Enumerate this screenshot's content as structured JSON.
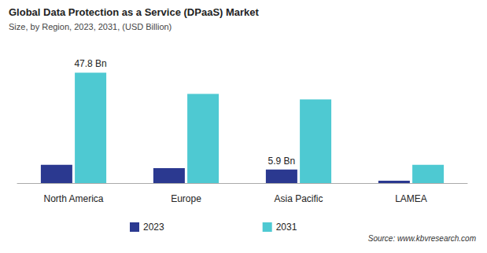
{
  "chart_data": {
    "type": "bar",
    "title": "Global Data Protection as a Service (DPaaS) Market",
    "subtitle": "Size, by Region, 2023, 2031, (USD Billion)",
    "categories": [
      "North America",
      "Europe",
      "Asia Pacific",
      "LAMEA"
    ],
    "series": [
      {
        "name": "2023",
        "color": "#2b3990",
        "values": [
          7.9,
          6.5,
          5.9,
          1.0
        ],
        "value_labels": [
          null,
          null,
          "5.9 Bn",
          null
        ]
      },
      {
        "name": "2031",
        "color": "#4ec9d2",
        "values": [
          47.8,
          38.6,
          36.2,
          7.9
        ],
        "value_labels": [
          "47.8 Bn",
          null,
          null,
          null
        ]
      }
    ],
    "ylim": [
      0,
      50
    ],
    "yticks": [
      0,
      50
    ],
    "grid": false,
    "tick_labels": "x",
    "legend": "bottom",
    "annotations": [
      "Source: www.kbvresearch.com"
    ]
  }
}
